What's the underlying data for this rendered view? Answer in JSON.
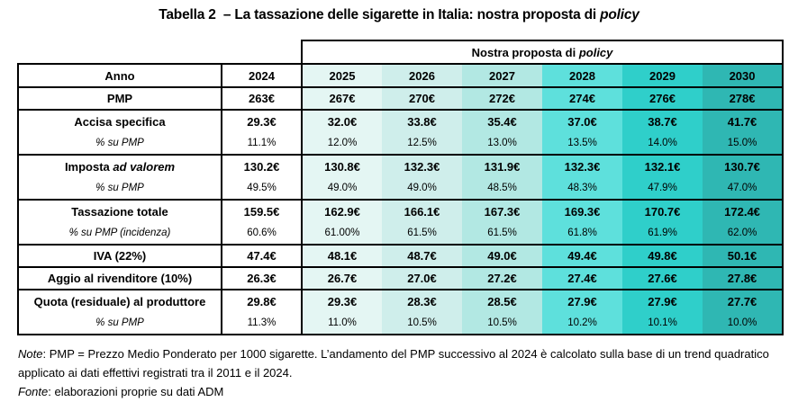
{
  "title": {
    "pre": "Tabella 2  – La tassazione delle sigarette in Italia: nostra proposta di ",
    "em": "policy"
  },
  "table": {
    "proposal_header": {
      "pre": "Nostra proposta di ",
      "em": "policy"
    },
    "corner_label": "Anno",
    "base_year": "2024",
    "years": [
      "2025",
      "2026",
      "2027",
      "2028",
      "2029",
      "2030"
    ],
    "year_colors": [
      "#e4f6f3",
      "#cfeeeb",
      "#b2e8e3",
      "#5ee0dc",
      "#2fcfca",
      "#2fb7b3"
    ],
    "border_color": "#000000",
    "rows": [
      {
        "label": "PMP",
        "label_em": "",
        "sub": false,
        "group_start": true,
        "base": "263€",
        "values": [
          "267€",
          "270€",
          "272€",
          "274€",
          "276€",
          "278€"
        ]
      },
      {
        "label": "Accisa specifica",
        "label_em": "",
        "sub": false,
        "group_start": true,
        "base": "29.3€",
        "values": [
          "32.0€",
          "33.8€",
          "35.4€",
          "37.0€",
          "38.7€",
          "41.7€"
        ]
      },
      {
        "label": "% su PMP",
        "label_em": "",
        "sub": true,
        "group_start": false,
        "base": "11.1%",
        "values": [
          "12.0%",
          "12.5%",
          "13.0%",
          "13.5%",
          "14.0%",
          "15.0%"
        ]
      },
      {
        "label": "Imposta ",
        "label_em": "ad valorem",
        "sub": false,
        "group_start": true,
        "base": "130.2€",
        "values": [
          "130.8€",
          "132.3€",
          "131.9€",
          "132.3€",
          "132.1€",
          "130.7€"
        ]
      },
      {
        "label": "% su PMP",
        "label_em": "",
        "sub": true,
        "group_start": false,
        "base": "49.5%",
        "values": [
          "49.0%",
          "49.0%",
          "48.5%",
          "48.3%",
          "47.9%",
          "47.0%"
        ]
      },
      {
        "label": "Tassazione totale",
        "label_em": "",
        "sub": false,
        "group_start": true,
        "base": "159.5€",
        "values": [
          "162.9€",
          "166.1€",
          "167.3€",
          "169.3€",
          "170.7€",
          "172.4€"
        ]
      },
      {
        "label": "% su PMP (incidenza)",
        "label_em": "",
        "sub": true,
        "group_start": false,
        "base": "60.6%",
        "values": [
          "61.00%",
          "61.5%",
          "61.5%",
          "61.8%",
          "61.9%",
          "62.0%"
        ]
      },
      {
        "label": "IVA (22%)",
        "label_em": "",
        "sub": false,
        "group_start": true,
        "base": "47.4€",
        "values": [
          "48.1€",
          "48.7€",
          "49.0€",
          "49.4€",
          "49.8€",
          "50.1€"
        ]
      },
      {
        "label": "Aggio al rivenditore (10%)",
        "label_em": "",
        "sub": false,
        "group_start": true,
        "base": "26.3€",
        "values": [
          "26.7€",
          "27.0€",
          "27.2€",
          "27.4€",
          "27.6€",
          "27.8€"
        ]
      },
      {
        "label": "Quota (residuale) al produttore",
        "label_em": "",
        "sub": false,
        "group_start": true,
        "base": "29.8€",
        "values": [
          "29.3€",
          "28.3€",
          "28.5€",
          "27.9€",
          "27.9€",
          "27.7€"
        ]
      },
      {
        "label": "% su PMP",
        "label_em": "",
        "sub": true,
        "group_start": false,
        "base": "11.3%",
        "values": [
          "11.0%",
          "10.5%",
          "10.5%",
          "10.2%",
          "10.1%",
          "10.0%"
        ]
      }
    ]
  },
  "notes": {
    "note_em": "Note",
    "note_text": ": PMP = Prezzo Medio Ponderato per 1000 sigarette. L’andamento del PMP successivo al 2024 è calcolato sulla base di un trend quadratico applicato ai dati effettivi registrati tra il 2011 e il 2024.",
    "fonte_em": "Fonte",
    "fonte_text": ": elaborazioni proprie su dati ADM"
  }
}
